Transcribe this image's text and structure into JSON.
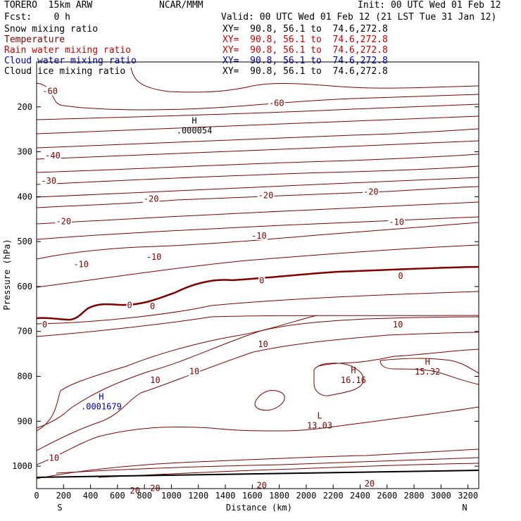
{
  "header": {
    "model": "TORERO  15km ARW",
    "center": "NCAR/MMM",
    "init": "Init: 00 UTC Wed 01 Feb 12",
    "fcst": "Fcst:    0 h",
    "valid": "Valid: 00 UTC Wed 01 Feb 12 (21 LST Tue 31 Jan 12)"
  },
  "fields": [
    {
      "label": "Snow mixing ratio",
      "color": "#000000",
      "xy": "XY=  90.8, 56.1 to  74.6,272.8"
    },
    {
      "label": "Temperature",
      "color": "#800000",
      "xy": "XY=  90.8, 56.1 to  74.6,272.8"
    },
    {
      "label": "Rain water mixing ratio",
      "color": "#cc0000",
      "xy": "XY=  90.8, 56.1 to  74.6,272.8"
    },
    {
      "label": "Cloud water mixing ratio",
      "color": "#0000aa",
      "xy": "XY=  90.8, 56.1 to  74.6,272.8"
    },
    {
      "label": "Cloud ice mixing ratio",
      "color": "#000000",
      "xy": "XY=  90.8, 56.1 to  74.6,272.8"
    }
  ],
  "chart_data": {
    "type": "cross-section contour",
    "xlabel": "Distance (km)",
    "ylabel": "Pressure (hPa)",
    "xlim": [
      0,
      3280
    ],
    "ylim": [
      1050,
      100
    ],
    "x_ticks": [
      0,
      200,
      400,
      600,
      800,
      1000,
      1200,
      1400,
      1600,
      1800,
      2000,
      2200,
      2400,
      2600,
      2800,
      3000,
      3200
    ],
    "y_ticks": [
      200,
      300,
      400,
      500,
      600,
      700,
      800,
      900,
      1000
    ],
    "endpoints": {
      "left": "S",
      "right": "N"
    },
    "temperature_labels": [
      {
        "text": "-60",
        "x": 100,
        "p": 168
      },
      {
        "text": "-60",
        "x": 1780,
        "p": 195
      },
      {
        "text": "-40",
        "x": 120,
        "p": 312
      },
      {
        "text": "-30",
        "x": 90,
        "p": 368
      },
      {
        "text": "-20",
        "x": 850,
        "p": 408
      },
      {
        "text": "-20",
        "x": 1700,
        "p": 400
      },
      {
        "text": "-20",
        "x": 2480,
        "p": 392
      },
      {
        "text": "-20",
        "x": 200,
        "p": 458
      },
      {
        "text": "-10",
        "x": 1650,
        "p": 490
      },
      {
        "text": "-10",
        "x": 2670,
        "p": 460
      },
      {
        "text": "-10",
        "x": 870,
        "p": 537
      },
      {
        "text": "-10",
        "x": 330,
        "p": 554
      },
      {
        "text": "0",
        "x": 1670,
        "p": 590
      },
      {
        "text": "0",
        "x": 2700,
        "p": 580
      },
      {
        "text": "0",
        "x": 690,
        "p": 645
      },
      {
        "text": "0",
        "x": 860,
        "p": 647
      },
      {
        "text": "0",
        "x": 60,
        "p": 688
      },
      {
        "text": "10",
        "x": 2680,
        "p": 688
      },
      {
        "text": "10",
        "x": 1680,
        "p": 732
      },
      {
        "text": "10",
        "x": 1170,
        "p": 792
      },
      {
        "text": "10",
        "x": 880,
        "p": 812
      },
      {
        "text": "10",
        "x": 130,
        "p": 985
      },
      {
        "text": "20",
        "x": 2470,
        "p": 1042
      },
      {
        "text": "20",
        "x": 1670,
        "p": 1046
      },
      {
        "text": "20",
        "x": 880,
        "p": 1052
      },
      {
        "text": "20",
        "x": 730,
        "p": 1058
      }
    ],
    "extrema": [
      {
        "kind": "H",
        "value": ".000054",
        "x": 1170,
        "p": 240,
        "color": "#000000"
      },
      {
        "kind": "H",
        "value": "15.32",
        "x": 2900,
        "p": 777,
        "color": "#800000"
      },
      {
        "kind": "H",
        "value": "16.16",
        "x": 2350,
        "p": 796,
        "color": "#800000"
      },
      {
        "kind": "H",
        "value": ".0001679",
        "x": 480,
        "p": 855,
        "color": "#0000aa"
      },
      {
        "kind": "L",
        "value": "13.03",
        "x": 2100,
        "p": 897,
        "color": "#800000"
      }
    ],
    "ground_line": {
      "p_left": 1051,
      "p_right": 1030
    }
  }
}
